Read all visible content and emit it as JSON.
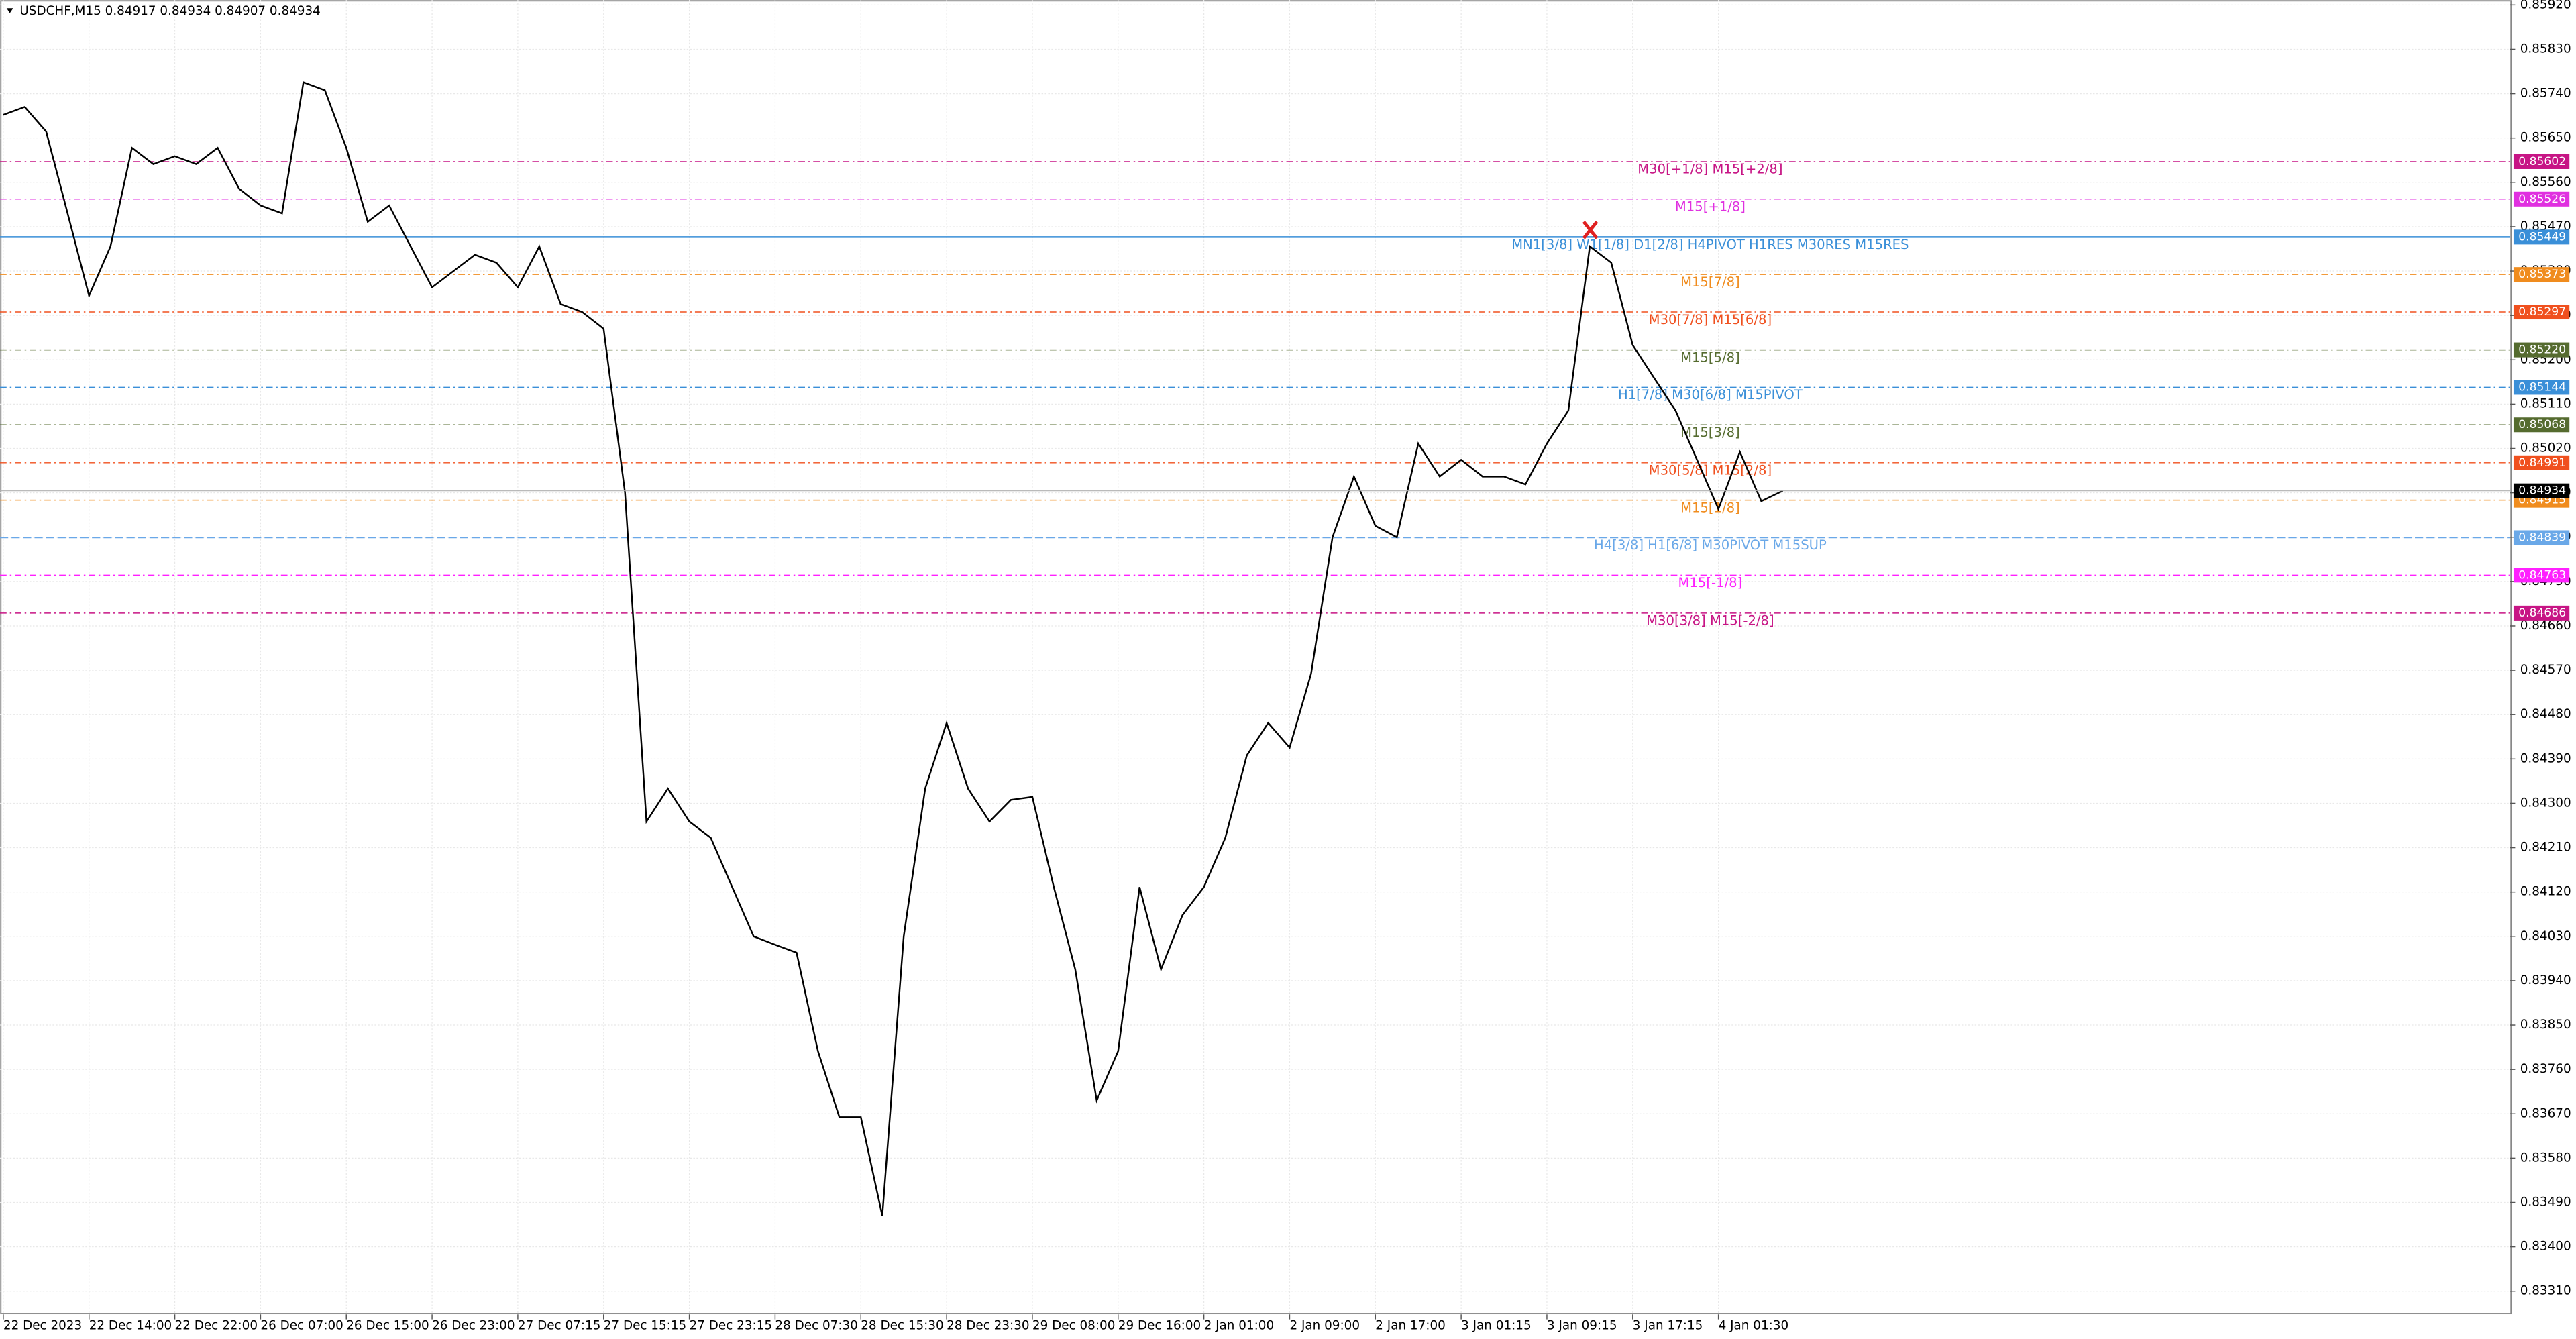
{
  "chart_data": {
    "type": "line",
    "title": "USDCHF,M15  0.84917 0.84934 0.84907 0.84934",
    "categories": [
      "22 Dec 2023",
      null,
      null,
      null,
      "22 Dec 14:00",
      null,
      null,
      null,
      "22 Dec 22:00",
      null,
      null,
      null,
      "26 Dec 07:00",
      null,
      null,
      null,
      "26 Dec 15:00",
      null,
      null,
      null,
      "26 Dec 23:00",
      null,
      null,
      null,
      "27 Dec 07:15",
      null,
      null,
      null,
      "27 Dec 15:15",
      null,
      null,
      null,
      "27 Dec 23:15",
      null,
      null,
      null,
      "28 Dec 07:30",
      null,
      null,
      null,
      "28 Dec 15:30",
      null,
      null,
      null,
      "28 Dec 23:30",
      null,
      null,
      null,
      "29 Dec 08:00",
      null,
      null,
      null,
      "29 Dec 16:00",
      null,
      null,
      null,
      "2 Jan 01:00",
      null,
      null,
      null,
      "2 Jan 09:00",
      null,
      null,
      null,
      "2 Jan 17:00",
      null,
      null,
      null,
      "3 Jan 01:15",
      null,
      null,
      null,
      "3 Jan 09:15",
      null,
      null,
      null,
      "3 Jan 17:15",
      null,
      null,
      null,
      "4 Jan 01:30",
      null,
      null,
      null
    ],
    "series": [
      {
        "name": "USDCHF",
        "color": "#000000",
        "values": [
          0.85697,
          0.85713,
          0.85663,
          0.85497,
          0.8533,
          0.8543,
          0.8563,
          0.85597,
          0.85613,
          0.85597,
          0.8563,
          0.85547,
          0.85513,
          0.85497,
          0.85763,
          0.85747,
          0.8563,
          0.8548,
          0.85513,
          0.8543,
          0.85347,
          0.8538,
          0.85413,
          0.85397,
          0.85347,
          0.8543,
          0.85313,
          0.85297,
          0.85263,
          0.8493,
          0.84263,
          0.8433,
          0.84263,
          0.8423,
          0.8413,
          0.8403,
          0.84013,
          0.83997,
          0.83797,
          0.83663,
          0.83663,
          0.83463,
          0.8403,
          0.8433,
          0.84463,
          0.8433,
          0.84263,
          0.84307,
          0.84313,
          0.8413,
          0.83963,
          0.83697,
          0.83797,
          0.8413,
          0.83963,
          0.84073,
          0.8413,
          0.8423,
          0.84397,
          0.84463,
          0.84413,
          0.84563,
          0.8484,
          0.84963,
          0.84863,
          0.8484,
          0.8503,
          0.84963,
          0.84997,
          0.84963,
          0.84963,
          0.84947,
          0.8503,
          0.85097,
          0.8543,
          0.85397,
          0.8523,
          0.85163,
          0.85097,
          0.84997,
          0.84897,
          0.85013,
          0.84913,
          0.84934
        ]
      }
    ],
    "ylim": [
      0.83263,
      0.8593
    ],
    "yticks": [
      {
        "value": 0.8592,
        "label": "0.85920"
      },
      {
        "value": 0.8583,
        "label": "0.85830"
      },
      {
        "value": 0.8574,
        "label": "0.85740"
      },
      {
        "value": 0.8565,
        "label": "0.85650"
      },
      {
        "value": 0.8556,
        "label": "0.85560"
      },
      {
        "value": 0.8547,
        "label": "0.85470"
      },
      {
        "value": 0.8538,
        "label": "0.85380"
      },
      {
        "value": 0.8529,
        "label": "0.85290"
      },
      {
        "value": 0.852,
        "label": "0.85200"
      },
      {
        "value": 0.8511,
        "label": "0.85110"
      },
      {
        "value": 0.8502,
        "label": "0.85020"
      },
      {
        "value": 0.8493,
        "label": "0.84930"
      },
      {
        "value": 0.8484,
        "label": "0.84840"
      },
      {
        "value": 0.8475,
        "label": "0.84750"
      },
      {
        "value": 0.8466,
        "label": "0.84660"
      },
      {
        "value": 0.8457,
        "label": "0.84570"
      },
      {
        "value": 0.8448,
        "label": "0.84480"
      },
      {
        "value": 0.8439,
        "label": "0.84390"
      },
      {
        "value": 0.843,
        "label": "0.84300"
      },
      {
        "value": 0.8421,
        "label": "0.84210"
      },
      {
        "value": 0.8412,
        "label": "0.84120"
      },
      {
        "value": 0.8403,
        "label": "0.84030"
      },
      {
        "value": 0.8394,
        "label": "0.83940"
      },
      {
        "value": 0.8385,
        "label": "0.83850"
      },
      {
        "value": 0.8376,
        "label": "0.83760"
      },
      {
        "value": 0.8367,
        "label": "0.83670"
      },
      {
        "value": 0.8358,
        "label": "0.83580"
      },
      {
        "value": 0.8349,
        "label": "0.83490"
      },
      {
        "value": 0.834,
        "label": "0.83400"
      },
      {
        "value": 0.8331,
        "label": "0.83310"
      }
    ],
    "grid": true,
    "levels": {
      "names": [
        "M30[+1/8] M15[+2/8]",
        "M15[+1/8]",
        "MN1[3/8] W1[1/8] D1[2/8] H4PIVOT H1RES M30RES M15RES",
        "M15[7/8]",
        "M30[7/8] M15[6/8]",
        "M15[5/8]",
        "H1[7/8] M30[6/8] M15PIVOT",
        "M15[3/8]",
        "M30[5/8] M15[2/8]",
        "M15[1/8]",
        "H4[3/8] H1[6/8] M30PIVOT M15SUP",
        "M15[-1/8]",
        "M30[3/8] M15[-2/8]"
      ],
      "values": [
        0.85602,
        0.85526,
        0.85449,
        0.85373,
        0.85297,
        0.8522,
        0.85144,
        0.85068,
        0.84991,
        0.84915,
        0.84839,
        0.84763,
        0.84686
      ],
      "value_labels": [
        "0.85602",
        "0.85526",
        "0.85449",
        "0.85373",
        "0.85297",
        "0.85220",
        "0.85144",
        "0.85068",
        "0.84991",
        "0.84915",
        "0.84839",
        "0.84763",
        "0.84686"
      ],
      "colors": [
        "#c71585",
        "#e030e0",
        "#3a8fd8",
        "#f08c1e",
        "#f0501e",
        "#556b2f",
        "#3a8fd8",
        "#556b2f",
        "#f0501e",
        "#f08c1e",
        "#6aa8e8",
        "#ff20ff",
        "#c71585"
      ]
    },
    "current_price": 0.84934
  }
}
